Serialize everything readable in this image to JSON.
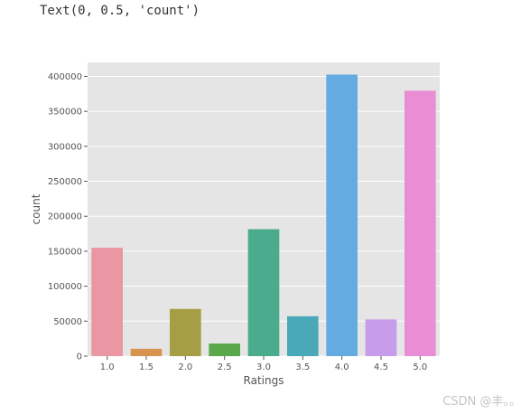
{
  "output_text": "Text(0, 0.5, 'count')",
  "watermark": "CSDN @丰。。",
  "chart_data": {
    "type": "bar",
    "title": "",
    "xlabel": "Ratings",
    "ylabel": "count",
    "categories": [
      "1.0",
      "1.5",
      "2.0",
      "2.5",
      "3.0",
      "3.5",
      "4.0",
      "4.5",
      "5.0"
    ],
    "values": [
      155000,
      10500,
      67500,
      18000,
      181500,
      57000,
      402500,
      52500,
      379500
    ],
    "colors": [
      "#ea96a3",
      "#d8944f",
      "#a59e45",
      "#59a84b",
      "#4aac8c",
      "#4aa9b8",
      "#64abe1",
      "#c79ceb",
      "#e98ed4"
    ],
    "ylim": [
      0,
      420000
    ],
    "yticks": [
      0,
      50000,
      100000,
      150000,
      200000,
      250000,
      300000,
      350000,
      400000
    ],
    "ytick_labels": [
      "0",
      "50000",
      "100000",
      "150000",
      "200000",
      "250000",
      "300000",
      "350000",
      "400000"
    ],
    "grid": true,
    "style": "ggplot",
    "background": "#e5e5e5"
  }
}
